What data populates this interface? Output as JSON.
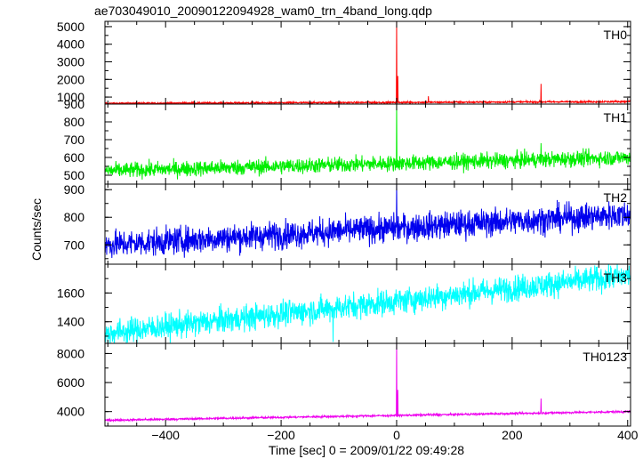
{
  "chart_data": {
    "type": "line",
    "title": "ae703049010_20090122094928_wam0_trn_4band_long.qdp",
    "xlabel": "Time [sec] 0 = 2009/01/22 09:49:28",
    "ylabel": "Counts/sec",
    "xlim": [
      -505,
      405
    ],
    "x_ticks": [
      -400,
      -200,
      0,
      200,
      400
    ],
    "x_tick_labels": [
      "−400",
      "−200",
      "0",
      "200",
      "400"
    ],
    "panels": [
      {
        "name": "TH0",
        "color": "#ff0000",
        "ylim": [
          600,
          5300
        ],
        "y_ticks": [
          1000,
          2000,
          3000,
          4000,
          5000
        ],
        "y_tick_labels": [
          "1000",
          "2000",
          "3000",
          "4000",
          "5000"
        ],
        "baseline": [
          [
            -505,
            640
          ],
          [
            400,
            740
          ]
        ],
        "noise": 25,
        "spikes": [
          {
            "x": 0,
            "y": 5300
          },
          {
            "x": 2,
            "y": 2200
          },
          {
            "x": 55,
            "y": 1050
          },
          {
            "x": 250,
            "y": 1750
          }
        ]
      },
      {
        "name": "TH1",
        "color": "#00ee00",
        "ylim": [
          450,
          900
        ],
        "y_ticks": [
          500,
          600,
          700,
          800,
          900
        ],
        "y_tick_labels": [
          "500",
          "600",
          "700",
          "800",
          "900"
        ],
        "baseline": [
          [
            -505,
            525
          ],
          [
            400,
            600
          ]
        ],
        "noise": 22,
        "spikes": [
          {
            "x": 0,
            "y": 900
          },
          {
            "x": 250,
            "y": 680
          }
        ]
      },
      {
        "name": "TH2",
        "color": "#0000ee",
        "ylim": [
          630,
          920
        ],
        "y_ticks": [
          700,
          800,
          900
        ],
        "y_tick_labels": [
          "700",
          "800",
          "900"
        ],
        "baseline": [
          [
            -505,
            700
          ],
          [
            400,
            810
          ]
        ],
        "noise": 25,
        "spikes": [
          {
            "x": 0,
            "y": 920
          }
        ]
      },
      {
        "name": "TH3",
        "color": "#00ffff",
        "ylim": [
          1250,
          1800
        ],
        "y_ticks": [
          1400,
          1600
        ],
        "y_tick_labels": [
          "1400",
          "1600"
        ],
        "baseline": [
          [
            -505,
            1320
          ],
          [
            400,
            1720
          ]
        ],
        "noise": 45,
        "spikes": [
          {
            "x": -500,
            "y": 1250
          },
          {
            "x": -110,
            "y": 1260
          }
        ]
      },
      {
        "name": "TH0123",
        "color": "#ee00ee",
        "ylim": [
          3000,
          8700
        ],
        "y_ticks": [
          4000,
          6000,
          8000
        ],
        "y_tick_labels": [
          "4000",
          "6000",
          "8000"
        ],
        "baseline": [
          [
            -505,
            3400
          ],
          [
            400,
            4000
          ]
        ],
        "noise": 35,
        "spikes": [
          {
            "x": 0,
            "y": 8700
          },
          {
            "x": 2,
            "y": 5500
          },
          {
            "x": 55,
            "y": 3900
          },
          {
            "x": 250,
            "y": 4900
          }
        ]
      }
    ]
  }
}
